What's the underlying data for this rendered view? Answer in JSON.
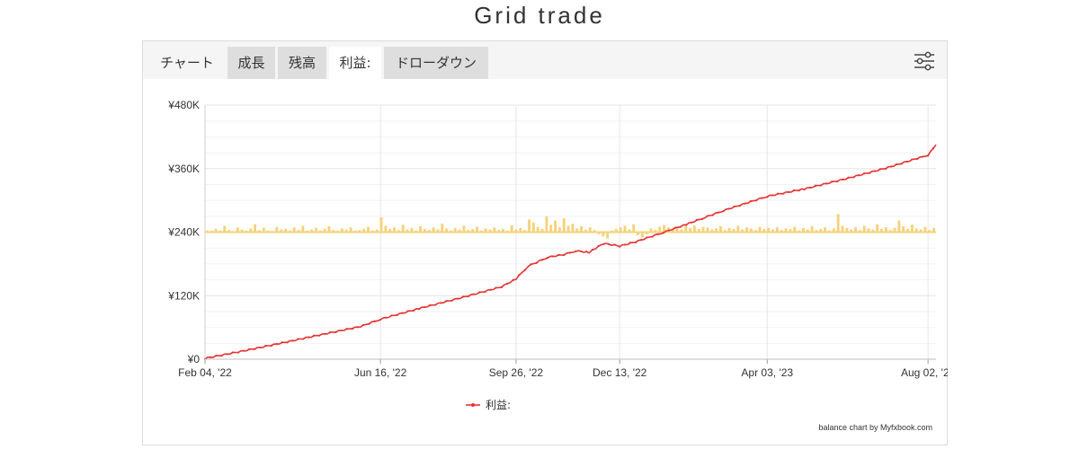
{
  "page": {
    "title": "Grid trade"
  },
  "tabs": [
    {
      "label": "チャート",
      "state": "plain"
    },
    {
      "label": "成長",
      "state": "inactive"
    },
    {
      "label": "残高",
      "state": "inactive"
    },
    {
      "label": "利益:",
      "state": "active"
    },
    {
      "label": "ドローダウン",
      "state": "inactive"
    }
  ],
  "settings_icon": "sliders-icon",
  "credit": "balance chart by Myfxbook.com",
  "colors": {
    "line": "#e53333",
    "bars": "#f5d27a",
    "grid": "#e6e6e6"
  },
  "chart_data": {
    "type": "line",
    "title": "",
    "xlabel": "",
    "ylabel": "",
    "ylim": [
      0,
      480000
    ],
    "y_ticks": [
      {
        "value": 0,
        "label": "¥0"
      },
      {
        "value": 120000,
        "label": "¥120K"
      },
      {
        "value": 240000,
        "label": "¥240K"
      },
      {
        "value": 360000,
        "label": "¥360K"
      },
      {
        "value": 480000,
        "label": "¥480K"
      }
    ],
    "x_range": [
      "2022-02-04",
      "2023-08-08"
    ],
    "x_ticks": [
      {
        "date": "2022-02-04",
        "label": "Feb 04, '22"
      },
      {
        "date": "2022-06-16",
        "label": "Jun 16, '22"
      },
      {
        "date": "2022-09-26",
        "label": "Sep 26, '22"
      },
      {
        "date": "2022-12-13",
        "label": "Dec 13, '22"
      },
      {
        "date": "2023-04-03",
        "label": "Apr 03, '23"
      },
      {
        "date": "2023-08-02",
        "label": "Aug 02, '23"
      }
    ],
    "legend": {
      "position": "bottom-center"
    },
    "series": [
      {
        "name": "利益:",
        "x": [
          "2022-02-04",
          "2022-03-01",
          "2022-04-01",
          "2022-05-01",
          "2022-06-01",
          "2022-06-16",
          "2022-07-15",
          "2022-08-15",
          "2022-09-15",
          "2022-09-26",
          "2022-10-05",
          "2022-10-20",
          "2022-11-01",
          "2022-11-10",
          "2022-11-20",
          "2022-11-25",
          "2022-12-01",
          "2022-12-13",
          "2022-12-25",
          "2023-01-15",
          "2023-02-01",
          "2023-02-15",
          "2023-03-01",
          "2023-04-03",
          "2023-05-01",
          "2023-06-01",
          "2023-07-01",
          "2023-08-02",
          "2023-08-08"
        ],
        "values": [
          2000,
          14000,
          30000,
          46000,
          62000,
          76000,
          96000,
          116000,
          137000,
          152000,
          176000,
          193000,
          198000,
          205000,
          202000,
          210000,
          219000,
          214000,
          222000,
          240000,
          255000,
          268000,
          281000,
          308000,
          322000,
          341000,
          361000,
          386000,
          405000
        ]
      }
    ],
    "daily_bars": {
      "baseline": 240000,
      "description_values_in_yen_relative_to_baseline": [
        3000,
        3000,
        6000,
        3000,
        12000,
        4000,
        2000,
        9000,
        5000,
        3000,
        7000,
        15000,
        4000,
        8000,
        3000,
        2000,
        10000,
        5000,
        6000,
        3000,
        9000,
        4000,
        12000,
        3000,
        5000,
        8000,
        3000,
        6000,
        11000,
        4000,
        3000,
        7000,
        5000,
        9000,
        3000,
        4000,
        6000,
        10000,
        3000,
        5000,
        28000,
        12000,
        6000,
        9000,
        4000,
        14000,
        5000,
        8000,
        3000,
        11000,
        6000,
        4000,
        9000,
        5000,
        16000,
        7000,
        3000,
        8000,
        5000,
        12000,
        4000,
        6000,
        10000,
        3000,
        7000,
        5000,
        9000,
        4000,
        6000,
        3000,
        13000,
        5000,
        8000,
        4000,
        24000,
        18000,
        10000,
        6000,
        30000,
        14000,
        22000,
        9000,
        26000,
        12000,
        16000,
        7000,
        11000,
        5000,
        9000,
        4000,
        -4000,
        -8000,
        -12000,
        3000,
        6000,
        9000,
        12000,
        5000,
        15000,
        -6000,
        -10000,
        -4000,
        7000,
        4000,
        10000,
        13000,
        9000,
        6000,
        11000,
        5000,
        14000,
        8000,
        12000,
        6000,
        10000,
        9000,
        5000,
        7000,
        11000,
        4000,
        8000,
        6000,
        12000,
        5000,
        9000,
        7000,
        4000,
        10000,
        6000,
        8000,
        5000,
        9000,
        4000,
        7000,
        6000,
        10000,
        3000,
        8000,
        5000,
        11000,
        4000,
        6000,
        9000,
        3000,
        7000,
        34000,
        12000,
        8000,
        5000,
        9000,
        4000,
        12000,
        7000,
        5000,
        15000,
        6000,
        9000,
        4000,
        8000,
        22000,
        11000,
        6000,
        14000,
        7000,
        5000,
        10000,
        4000,
        8000
      ]
    }
  }
}
